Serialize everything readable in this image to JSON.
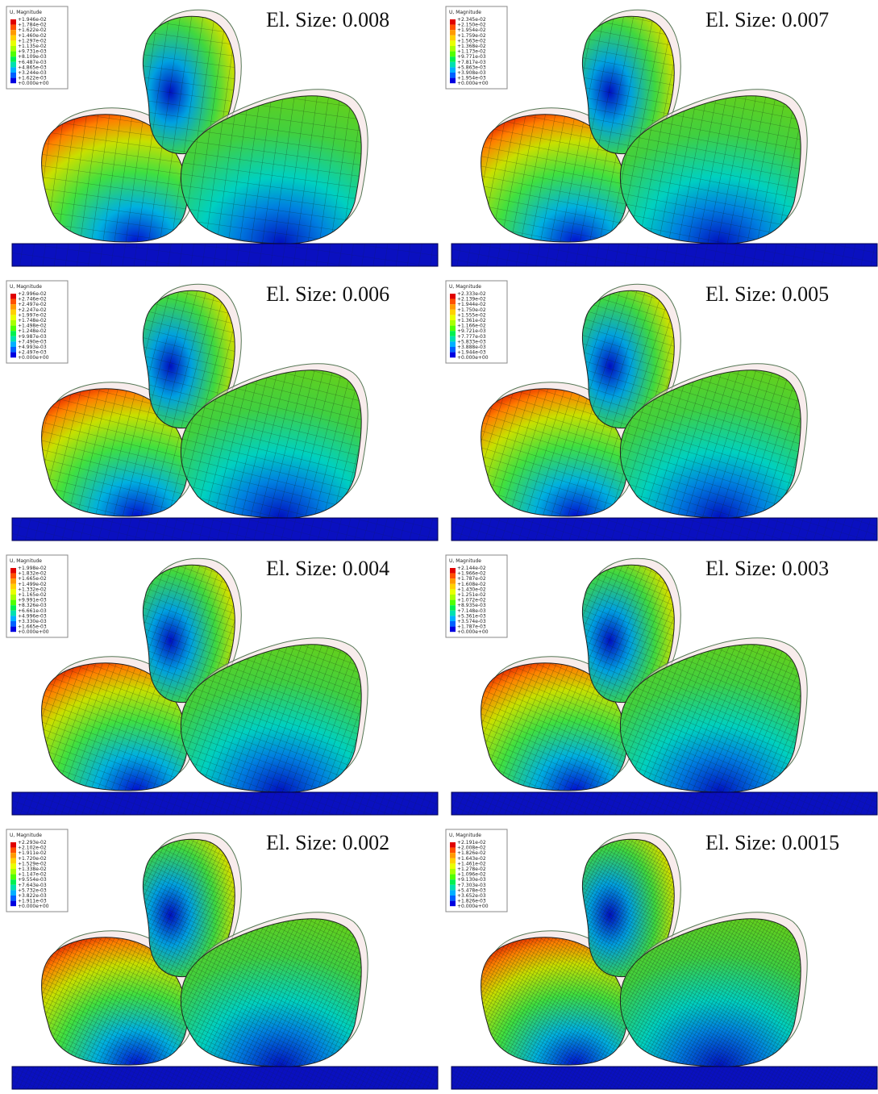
{
  "panels": [
    {
      "title": "El. Size: 0.008",
      "legend": {
        "title": "U, Magnitude",
        "labels": [
          "+1.946e-02",
          "+1.784e-02",
          "+1.622e-02",
          "+1.460e-02",
          "+1.297e-02",
          "+1.135e-02",
          "+9.731e-03",
          "+8.109e-03",
          "+6.487e-03",
          "+4.865e-03",
          "+3.244e-03",
          "+1.622e-03",
          "+0.000e+00"
        ]
      }
    },
    {
      "title": "El. Size: 0.007",
      "legend": {
        "title": "U, Magnitude",
        "labels": [
          "+2.345e-02",
          "+2.150e-02",
          "+1.954e-02",
          "+1.759e-02",
          "+1.563e-02",
          "+1.368e-02",
          "+1.173e-02",
          "+9.771e-03",
          "+7.817e-03",
          "+5.863e-03",
          "+3.908e-03",
          "+1.954e-03",
          "+0.000e+00"
        ]
      }
    },
    {
      "title": "El. Size: 0.006",
      "legend": {
        "title": "U, Magnitude",
        "labels": [
          "+2.996e-02",
          "+2.746e-02",
          "+2.497e-02",
          "+2.247e-02",
          "+1.997e-02",
          "+1.748e-02",
          "+1.498e-02",
          "+1.248e-02",
          "+9.987e-03",
          "+7.490e-03",
          "+4.993e-03",
          "+2.497e-03",
          "+0.000e+00"
        ]
      }
    },
    {
      "title": "El. Size: 0.005",
      "legend": {
        "title": "U, Magnitude",
        "labels": [
          "+2.333e-02",
          "+2.139e-02",
          "+1.944e-02",
          "+1.750e-02",
          "+1.555e-02",
          "+1.361e-02",
          "+1.166e-02",
          "+9.721e-03",
          "+7.777e-03",
          "+5.833e-03",
          "+3.888e-03",
          "+1.944e-03",
          "+0.000e+00"
        ]
      }
    },
    {
      "title": "El. Size: 0.004",
      "legend": {
        "title": "U, Magnitude",
        "labels": [
          "+1.998e-02",
          "+1.832e-02",
          "+1.665e-02",
          "+1.499e-02",
          "+1.332e-02",
          "+1.165e-02",
          "+9.991e-03",
          "+8.326e-03",
          "+6.661e-03",
          "+4.996e-03",
          "+3.330e-03",
          "+1.665e-03",
          "+0.000e+00"
        ]
      }
    },
    {
      "title": "El. Size: 0.003",
      "legend": {
        "title": "U, Magnitude",
        "labels": [
          "+2.144e-02",
          "+1.966e-02",
          "+1.787e-02",
          "+1.608e-02",
          "+1.430e-02",
          "+1.251e-02",
          "+1.072e-02",
          "+8.935e-03",
          "+7.148e-03",
          "+5.361e-03",
          "+3.574e-03",
          "+1.787e-03",
          "+0.000e+00"
        ]
      }
    },
    {
      "title": "El. Size: 0.002",
      "legend": {
        "title": "U, Magnitude",
        "labels": [
          "+2.293e-02",
          "+2.102e-02",
          "+1.911e-02",
          "+1.720e-02",
          "+1.529e-02",
          "+1.338e-02",
          "+1.147e-02",
          "+9.554e-03",
          "+7.643e-03",
          "+5.732e-03",
          "+3.822e-03",
          "+1.911e-03",
          "+0.000e+00"
        ]
      }
    },
    {
      "title": "El. Size: 0.0015",
      "legend": {
        "title": "U, Magnitude",
        "labels": [
          "+2.191e-02",
          "+2.008e-02",
          "+1.826e-02",
          "+1.643e-02",
          "+1.461e-02",
          "+1.278e-02",
          "+1.096e-02",
          "+9.130e-03",
          "+7.303e-03",
          "+5.478e-03",
          "+3.652e-03",
          "+1.826e-03",
          "+0.000e+00"
        ]
      }
    }
  ]
}
